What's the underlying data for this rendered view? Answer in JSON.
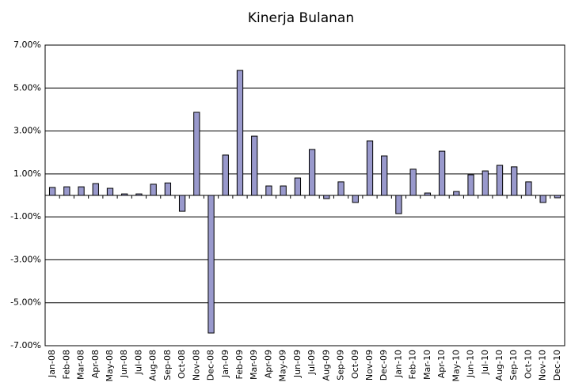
{
  "chart_data": {
    "type": "bar",
    "title": "Kinerja Bulanan",
    "categories": [
      "Jan-08",
      "Feb-08",
      "Mar-08",
      "Apr-08",
      "May-08",
      "Jun-08",
      "Jul-08",
      "Aug-08",
      "Sep-08",
      "Oct-08",
      "Nov-08",
      "Dec-08",
      "Jan-09",
      "Feb-09",
      "Mar-09",
      "Apr-09",
      "May-09",
      "Jun-09",
      "Jul-09",
      "Aug-09",
      "Sep-09",
      "Oct-09",
      "Nov-09",
      "Dec-09",
      "Jan-10",
      "Feb-10",
      "Mar-10",
      "Apr-10",
      "May-10",
      "Jun-10",
      "Jul-10",
      "Aug-10",
      "Sep-10",
      "Oct-10",
      "Nov-10",
      "Dec-10"
    ],
    "values": [
      0.37,
      0.4,
      0.4,
      0.55,
      0.33,
      0.07,
      0.07,
      0.52,
      0.58,
      -0.74,
      3.87,
      -6.41,
      1.88,
      5.82,
      2.76,
      0.44,
      0.44,
      0.81,
      2.14,
      -0.15,
      0.63,
      -0.33,
      2.54,
      1.84,
      -0.85,
      1.22,
      0.11,
      2.06,
      0.18,
      0.96,
      1.14,
      1.4,
      1.33,
      0.63,
      -0.33,
      -0.11
    ],
    "color": "#9999cc",
    "ylim": [
      -7,
      7
    ],
    "yticks": [
      {
        "value": -7,
        "label": "-7.00%"
      },
      {
        "value": -5,
        "label": "-5.00%"
      },
      {
        "value": -3,
        "label": "-3.00%"
      },
      {
        "value": -1,
        "label": "-1.00%"
      },
      {
        "value": 1,
        "label": "1.00%"
      },
      {
        "value": 3,
        "label": "3.00%"
      },
      {
        "value": 5,
        "label": "5.00%"
      },
      {
        "value": 7,
        "label": "7.00%"
      }
    ],
    "grid": true
  }
}
